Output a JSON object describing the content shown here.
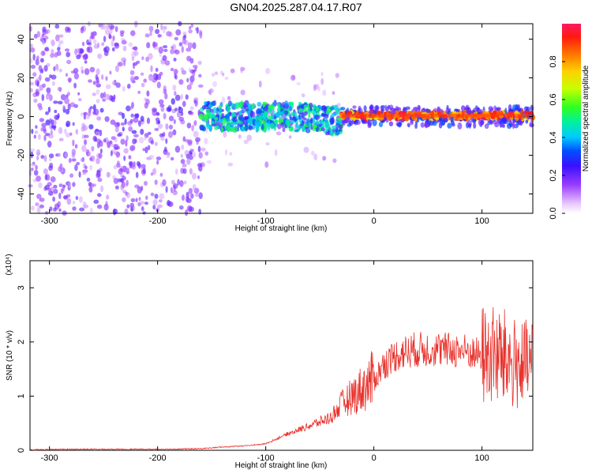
{
  "title": "GN04.2025.287.04.17.R07",
  "chart_data": [
    {
      "type": "heatmap",
      "xlabel": "Height of straight line (km)",
      "ylabel": "Frequency (Hz)",
      "xlim": [
        -318,
        147
      ],
      "ylim": [
        -50,
        48
      ],
      "x_ticks": [
        -300,
        -200,
        -100,
        0,
        100
      ],
      "y_ticks": [
        -40,
        -20,
        0,
        20,
        40
      ],
      "grid": false,
      "description_regions": [
        {
          "x": [
            -318,
            -160
          ],
          "y": [
            -50,
            48
          ],
          "level": 0.15
        },
        {
          "x": [
            -160,
            -30
          ],
          "y": [
            -12,
            10
          ],
          "level": 0.4
        },
        {
          "x": [
            -30,
            147
          ],
          "y": [
            -2,
            3
          ],
          "level": 0.95
        }
      ]
    },
    {
      "type": "line",
      "xlabel": "Height of straight line (km)",
      "ylabel": "SNR (10 * v/v)",
      "y_multiplier": "(x10⁴)",
      "xlim": [
        -318,
        147
      ],
      "ylim": [
        0,
        3.5
      ],
      "x_ticks": [
        -300,
        -200,
        -100,
        0,
        100
      ],
      "y_ticks": [
        0,
        1,
        2,
        3
      ],
      "series": [
        {
          "color": "#e8322c",
          "x": [
            -318,
            -280,
            -240,
            -200,
            -160,
            -140,
            -120,
            -100,
            -80,
            -60,
            -40,
            -30,
            -20,
            -10,
            0,
            10,
            20,
            30,
            40,
            50,
            60,
            70,
            80,
            90,
            100,
            110,
            120,
            130,
            140,
            147
          ],
          "y": [
            0.01,
            0.02,
            0.02,
            0.02,
            0.03,
            0.06,
            0.08,
            0.12,
            0.3,
            0.45,
            0.6,
            0.85,
            1.0,
            1.15,
            1.3,
            1.6,
            1.75,
            1.82,
            1.86,
            1.87,
            1.86,
            1.85,
            1.85,
            1.8,
            1.75,
            1.75,
            1.7,
            1.6,
            1.55,
            1.6
          ]
        }
      ],
      "colorbar": {
        "label": "Normalized spectral amplitude",
        "ticks": [
          0.0,
          0.2,
          0.4,
          0.6,
          0.8
        ]
      }
    }
  ]
}
